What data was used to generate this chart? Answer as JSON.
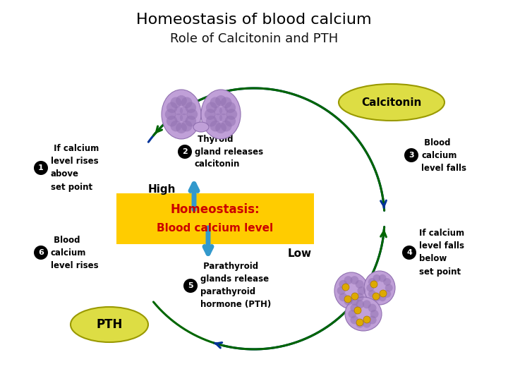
{
  "title": "Homeostasis of blood calcium",
  "subtitle": "Role of Calcitonin and PTH",
  "title_fontsize": 16,
  "subtitle_fontsize": 13,
  "background_color": "#ffffff",
  "calcitonin_label": "Calcitonin",
  "pth_label": "PTH",
  "high_label": "High",
  "low_label": "Low",
  "step1": " If calcium\nlevel rises\nabove\nset point",
  "step2": " Thyroid\ngland releases\ncalcitonin",
  "step3": " Blood\ncalcium\nlevel falls",
  "step4": "If calcium\nlevel falls\nbelow\nset point",
  "step5": " Parathyroid\nglands release\nparathyroid\nhormone (PTH)",
  "step6": " Blood\ncalcium\nlevel rises",
  "blue_arrow_color": "#003399",
  "green_arrow_color": "#006600",
  "cyan_color": "#3399cc",
  "yellow_fill": "#ffcc00",
  "calcitonin_fill": "#dddd44",
  "pth_fill": "#dddd44",
  "homeostasis_box_color": "#ffcc00",
  "homeostasis_text_color": "#cc0000",
  "step_text_color": "#000000"
}
